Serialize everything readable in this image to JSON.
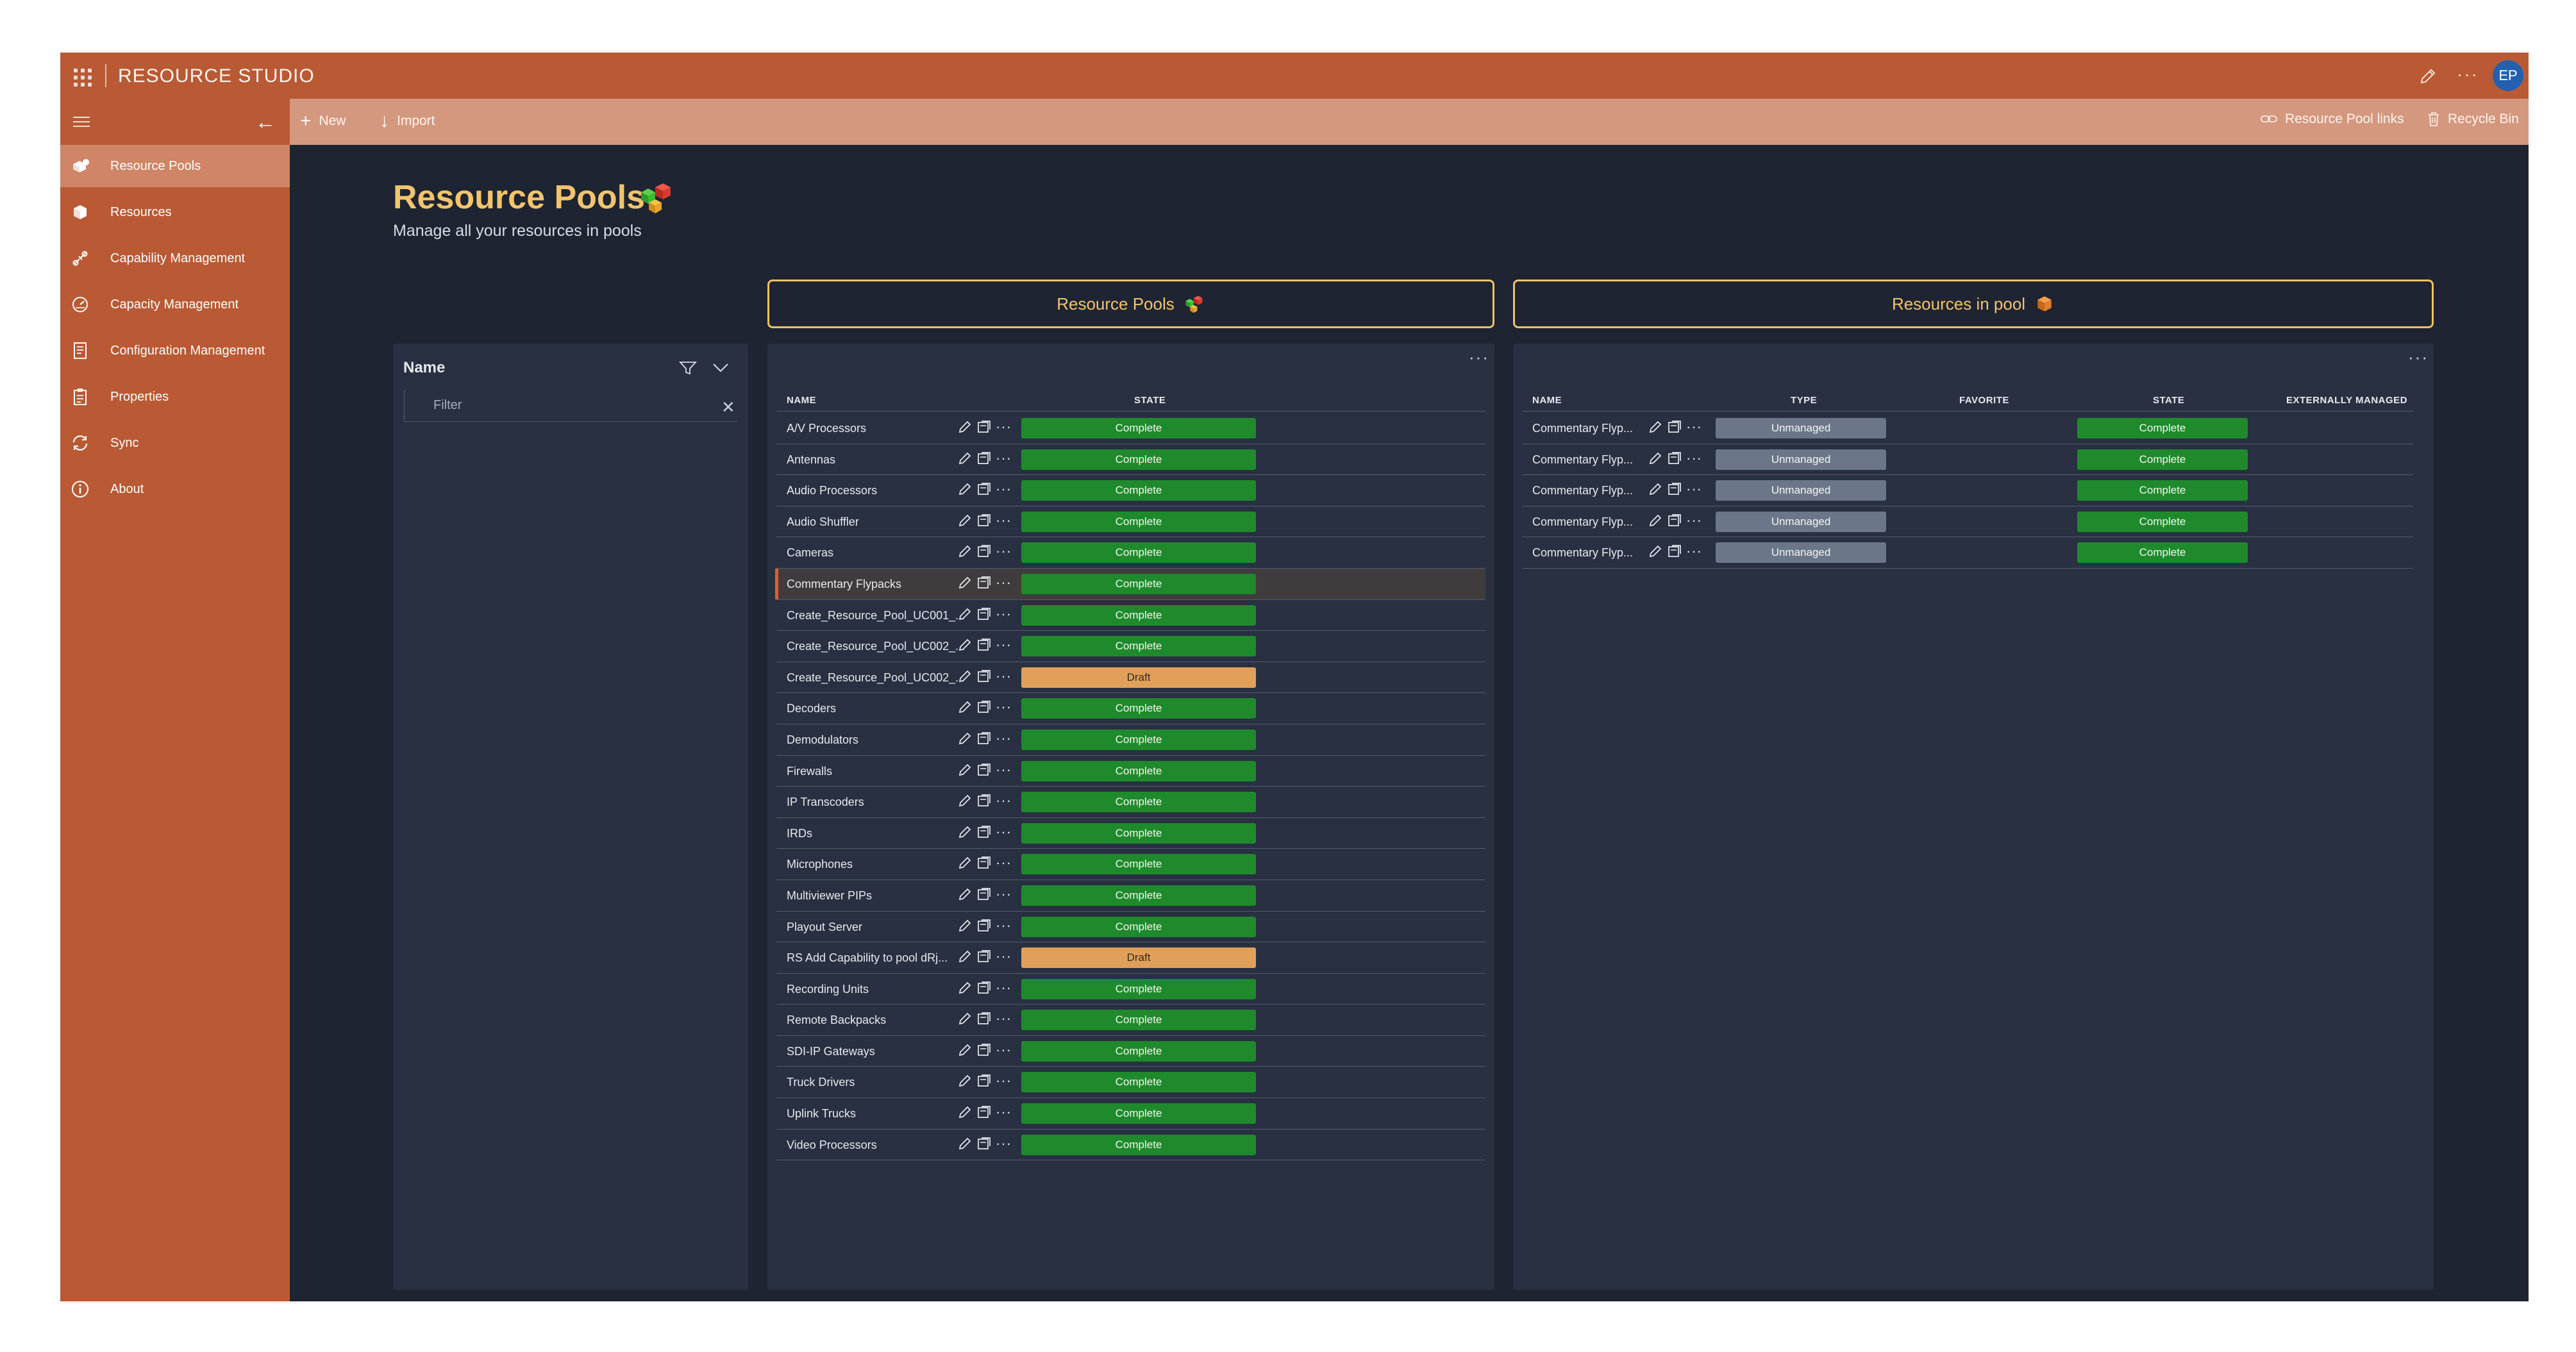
{
  "app": {
    "title": "RESOURCE STUDIO",
    "avatar_initials": "EP"
  },
  "toolbar": {
    "new_label": "New",
    "import_label": "Import",
    "pool_links_label": "Resource Pool links",
    "recycle_bin_label": "Recycle Bin"
  },
  "sidebar": {
    "items": [
      {
        "label": "Resource Pools",
        "icon": "resource-pools-icon",
        "active": true
      },
      {
        "label": "Resources",
        "icon": "cube-icon",
        "active": false
      },
      {
        "label": "Capability Management",
        "icon": "capability-icon",
        "active": false
      },
      {
        "label": "Capacity Management",
        "icon": "gauge-icon",
        "active": false
      },
      {
        "label": "Configuration Management",
        "icon": "config-document-icon",
        "active": false
      },
      {
        "label": "Properties",
        "icon": "clipboard-icon",
        "active": false
      },
      {
        "label": "Sync",
        "icon": "sync-icon",
        "active": false
      },
      {
        "label": "About",
        "icon": "info-icon",
        "active": false
      }
    ]
  },
  "page": {
    "title": "Resource Pools",
    "subtitle": "Manage all your resources in pools"
  },
  "tabs": {
    "pools_label": "Resource Pools",
    "resources_label": "Resources in pool"
  },
  "filter": {
    "column_label": "Name",
    "placeholder": "Filter"
  },
  "pools_table": {
    "columns": {
      "name": "NAME",
      "state": "STATE"
    },
    "rows": [
      {
        "name": "A/V Processors",
        "state": "Complete"
      },
      {
        "name": "Antennas",
        "state": "Complete"
      },
      {
        "name": "Audio Processors",
        "state": "Complete"
      },
      {
        "name": "Audio Shuffler",
        "state": "Complete"
      },
      {
        "name": "Cameras",
        "state": "Complete"
      },
      {
        "name": "Commentary Flypacks",
        "state": "Complete",
        "selected": true
      },
      {
        "name": "Create_Resource_Pool_UC001_...",
        "state": "Complete"
      },
      {
        "name": "Create_Resource_Pool_UC002_...",
        "state": "Complete"
      },
      {
        "name": "Create_Resource_Pool_UC002_...",
        "state": "Draft"
      },
      {
        "name": "Decoders",
        "state": "Complete"
      },
      {
        "name": "Demodulators",
        "state": "Complete"
      },
      {
        "name": "Firewalls",
        "state": "Complete"
      },
      {
        "name": "IP Transcoders",
        "state": "Complete"
      },
      {
        "name": "IRDs",
        "state": "Complete"
      },
      {
        "name": "Microphones",
        "state": "Complete"
      },
      {
        "name": "Multiviewer PIPs",
        "state": "Complete"
      },
      {
        "name": "Playout Server",
        "state": "Complete"
      },
      {
        "name": "RS Add Capability to pool dRj...",
        "state": "Draft"
      },
      {
        "name": "Recording Units",
        "state": "Complete"
      },
      {
        "name": "Remote Backpacks",
        "state": "Complete"
      },
      {
        "name": "SDI-IP Gateways",
        "state": "Complete"
      },
      {
        "name": "Truck Drivers",
        "state": "Complete"
      },
      {
        "name": "Uplink Trucks",
        "state": "Complete"
      },
      {
        "name": "Video Processors",
        "state": "Complete"
      }
    ]
  },
  "resources_table": {
    "columns": {
      "name": "NAME",
      "type": "TYPE",
      "favorite": "FAVORITE",
      "state": "STATE",
      "externally_managed": "EXTERNALLY MANAGED"
    },
    "rows": [
      {
        "name": "Commentary Flyp...",
        "type": "Unmanaged",
        "state": "Complete"
      },
      {
        "name": "Commentary Flyp...",
        "type": "Unmanaged",
        "state": "Complete"
      },
      {
        "name": "Commentary Flyp...",
        "type": "Unmanaged",
        "state": "Complete"
      },
      {
        "name": "Commentary Flyp...",
        "type": "Unmanaged",
        "state": "Complete"
      },
      {
        "name": "Commentary Flyp...",
        "type": "Unmanaged",
        "state": "Complete"
      }
    ]
  },
  "colors": {
    "topbar": "#b95a34",
    "commandbar": "#d4987f",
    "accent_gold": "#f2c46d",
    "complete": "#1f8a2c",
    "draft": "#e0a05a",
    "unmanaged": "#6b7689"
  }
}
